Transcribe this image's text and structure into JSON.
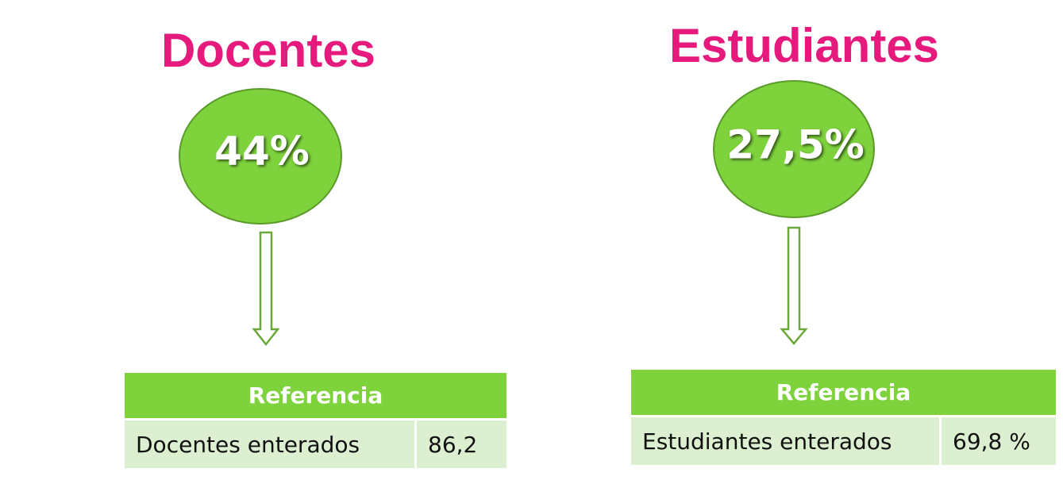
{
  "panels": [
    {
      "title": "Docentes",
      "value": "44%",
      "table": {
        "header": "Referencia",
        "rows": [
          [
            "Docentes enterados",
            "86,2"
          ]
        ]
      }
    },
    {
      "title": "Estudiantes",
      "value": "27,5%",
      "table": {
        "header": "Referencia",
        "rows": [
          [
            "Estudiantes enterados",
            "69,8 %"
          ]
        ]
      }
    }
  ]
}
